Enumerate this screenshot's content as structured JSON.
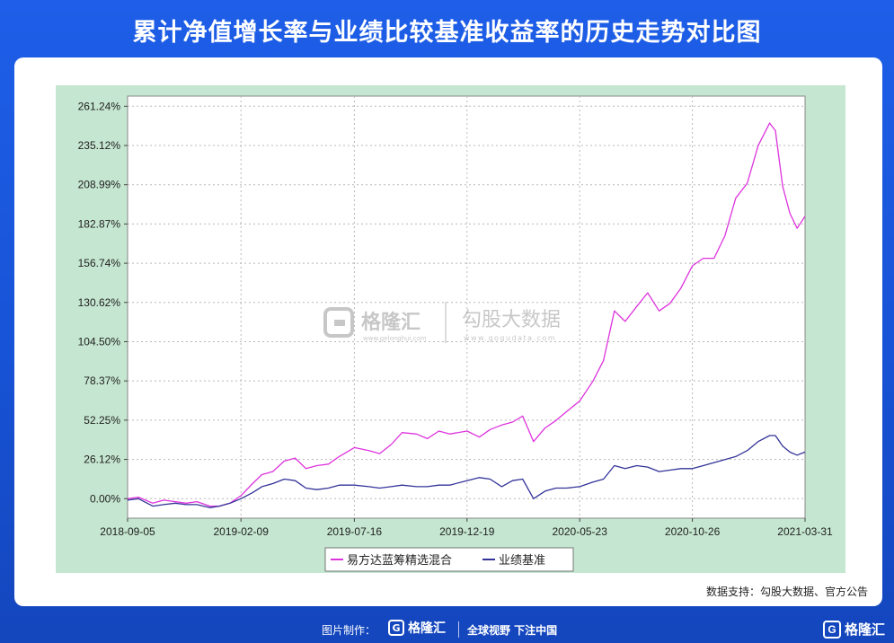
{
  "header": {
    "title": "累计净值增长率与业绩比较基准收益率的历史走势对比图"
  },
  "source_note": "数据支持：勾股大数据、官方公告",
  "footer": {
    "made_by": "图片制作：",
    "brand_name": "格隆汇",
    "brand_url": "www.gelonghui.com",
    "slogan": "全球视野 下注中国"
  },
  "watermark": {
    "brand_name": "格隆汇",
    "brand_url": "www.gelonghui.com",
    "data_name": "勾股大数据",
    "data_url": "www.gogudata.com"
  },
  "colors": {
    "plot_outer_bg": "#c5e6d0",
    "plot_bg": "#ffffff",
    "fund_line": "#dd33dd",
    "benchmark_line": "#333399",
    "grid": "#b8b8b8"
  },
  "chart_data": {
    "type": "line",
    "title": "",
    "xlabel": "",
    "ylabel": "",
    "x_ticks": [
      "2018-09-05",
      "2019-02-09",
      "2019-07-16",
      "2019-12-19",
      "2020-05-23",
      "2020-10-26",
      "2021-03-31"
    ],
    "y_ticks": [
      "0.00%",
      "26.12%",
      "52.25%",
      "78.37%",
      "104.50%",
      "130.62%",
      "156.74%",
      "182.87%",
      "208.99%",
      "235.12%",
      "261.24%"
    ],
    "ylim": [
      -13,
      268
    ],
    "grid": true,
    "legend_position": "bottom",
    "series": [
      {
        "name": "易方达蓝筹精选混合",
        "color": "#dd33dd",
        "points": [
          [
            "2018-09-05",
            0
          ],
          [
            "2018-09-20",
            1
          ],
          [
            "2018-10-10",
            -3
          ],
          [
            "2018-10-25",
            -1
          ],
          [
            "2018-11-10",
            -2
          ],
          [
            "2018-11-25",
            -3
          ],
          [
            "2018-12-10",
            -2
          ],
          [
            "2018-12-28",
            -5
          ],
          [
            "2019-01-10",
            -5
          ],
          [
            "2019-01-25",
            -3
          ],
          [
            "2019-02-09",
            2
          ],
          [
            "2019-02-25",
            10
          ],
          [
            "2019-03-10",
            16
          ],
          [
            "2019-03-25",
            18
          ],
          [
            "2019-04-10",
            25
          ],
          [
            "2019-04-25",
            27
          ],
          [
            "2019-05-10",
            20
          ],
          [
            "2019-05-25",
            22
          ],
          [
            "2019-06-10",
            23
          ],
          [
            "2019-06-25",
            28
          ],
          [
            "2019-07-16",
            34
          ],
          [
            "2019-08-05",
            32
          ],
          [
            "2019-08-20",
            30
          ],
          [
            "2019-09-05",
            36
          ],
          [
            "2019-09-20",
            44
          ],
          [
            "2019-10-10",
            43
          ],
          [
            "2019-10-25",
            40
          ],
          [
            "2019-11-10",
            45
          ],
          [
            "2019-11-25",
            43
          ],
          [
            "2019-12-19",
            45
          ],
          [
            "2020-01-05",
            41
          ],
          [
            "2020-01-20",
            46
          ],
          [
            "2020-02-05",
            49
          ],
          [
            "2020-02-20",
            51
          ],
          [
            "2020-03-05",
            55
          ],
          [
            "2020-03-20",
            38
          ],
          [
            "2020-04-05",
            47
          ],
          [
            "2020-04-20",
            52
          ],
          [
            "2020-05-05",
            58
          ],
          [
            "2020-05-23",
            65
          ],
          [
            "2020-06-10",
            78
          ],
          [
            "2020-06-25",
            92
          ],
          [
            "2020-07-10",
            125
          ],
          [
            "2020-07-25",
            118
          ],
          [
            "2020-08-10",
            128
          ],
          [
            "2020-08-25",
            137
          ],
          [
            "2020-09-10",
            125
          ],
          [
            "2020-09-25",
            130
          ],
          [
            "2020-10-10",
            140
          ],
          [
            "2020-10-26",
            155
          ],
          [
            "2020-11-10",
            160
          ],
          [
            "2020-11-25",
            160
          ],
          [
            "2020-12-10",
            175
          ],
          [
            "2020-12-25",
            200
          ],
          [
            "2021-01-10",
            210
          ],
          [
            "2021-01-25",
            235
          ],
          [
            "2021-02-10",
            250
          ],
          [
            "2021-02-18",
            245
          ],
          [
            "2021-02-28",
            208
          ],
          [
            "2021-03-10",
            190
          ],
          [
            "2021-03-20",
            180
          ],
          [
            "2021-03-31",
            188
          ]
        ]
      },
      {
        "name": "业绩基准",
        "color": "#333399",
        "points": [
          [
            "2018-09-05",
            -1
          ],
          [
            "2018-09-20",
            0
          ],
          [
            "2018-10-10",
            -5
          ],
          [
            "2018-10-25",
            -4
          ],
          [
            "2018-11-10",
            -3
          ],
          [
            "2018-11-25",
            -4
          ],
          [
            "2018-12-10",
            -4
          ],
          [
            "2018-12-28",
            -6
          ],
          [
            "2019-01-10",
            -5
          ],
          [
            "2019-01-25",
            -3
          ],
          [
            "2019-02-09",
            0
          ],
          [
            "2019-02-25",
            4
          ],
          [
            "2019-03-10",
            8
          ],
          [
            "2019-03-25",
            10
          ],
          [
            "2019-04-10",
            13
          ],
          [
            "2019-04-25",
            12
          ],
          [
            "2019-05-10",
            7
          ],
          [
            "2019-05-25",
            6
          ],
          [
            "2019-06-10",
            7
          ],
          [
            "2019-06-25",
            9
          ],
          [
            "2019-07-16",
            9
          ],
          [
            "2019-08-05",
            8
          ],
          [
            "2019-08-20",
            7
          ],
          [
            "2019-09-05",
            8
          ],
          [
            "2019-09-20",
            9
          ],
          [
            "2019-10-10",
            8
          ],
          [
            "2019-10-25",
            8
          ],
          [
            "2019-11-10",
            9
          ],
          [
            "2019-11-25",
            9
          ],
          [
            "2019-12-19",
            12
          ],
          [
            "2020-01-05",
            14
          ],
          [
            "2020-01-20",
            13
          ],
          [
            "2020-02-05",
            8
          ],
          [
            "2020-02-20",
            12
          ],
          [
            "2020-03-05",
            13
          ],
          [
            "2020-03-20",
            0
          ],
          [
            "2020-04-05",
            5
          ],
          [
            "2020-04-20",
            7
          ],
          [
            "2020-05-05",
            7
          ],
          [
            "2020-05-23",
            8
          ],
          [
            "2020-06-10",
            11
          ],
          [
            "2020-06-25",
            13
          ],
          [
            "2020-07-10",
            22
          ],
          [
            "2020-07-25",
            20
          ],
          [
            "2020-08-10",
            22
          ],
          [
            "2020-08-25",
            21
          ],
          [
            "2020-09-10",
            18
          ],
          [
            "2020-09-25",
            19
          ],
          [
            "2020-10-10",
            20
          ],
          [
            "2020-10-26",
            20
          ],
          [
            "2020-11-10",
            22
          ],
          [
            "2020-11-25",
            24
          ],
          [
            "2020-12-10",
            26
          ],
          [
            "2020-12-25",
            28
          ],
          [
            "2021-01-10",
            32
          ],
          [
            "2021-01-25",
            38
          ],
          [
            "2021-02-10",
            42
          ],
          [
            "2021-02-18",
            42
          ],
          [
            "2021-02-28",
            35
          ],
          [
            "2021-03-10",
            31
          ],
          [
            "2021-03-20",
            29
          ],
          [
            "2021-03-31",
            31
          ]
        ]
      }
    ]
  }
}
